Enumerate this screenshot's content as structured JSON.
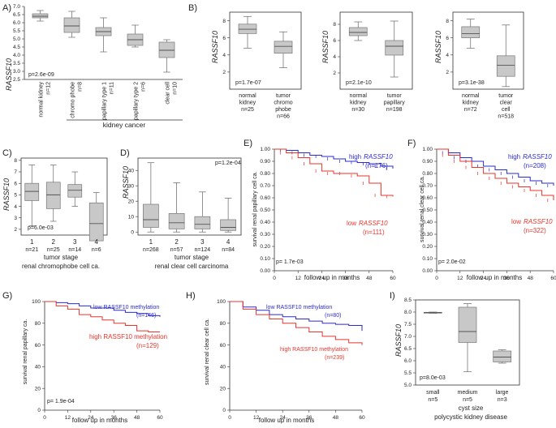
{
  "colors": {
    "box": "#c8c8c8",
    "blue": "#2b2bcf",
    "red": "#e8352b",
    "axis": "#333333"
  },
  "panels": {
    "A": {
      "label": "A)",
      "ylabel": "RASSF10",
      "pvalue": "p=2.6e-09",
      "group": "kidney cancer",
      "ticks": [
        "7.0",
        "6.5",
        "6.0",
        "5.5",
        "5.0",
        "4.5",
        "4.0",
        "3.5",
        "3.0",
        "2.5"
      ],
      "cats": [
        {
          "name": "normal kidney",
          "n": "n=12"
        },
        {
          "name": "chromo phobe",
          "n": "n=8"
        },
        {
          "name": "papillary type 1",
          "n": "n=11"
        },
        {
          "name": "papillary type 2",
          "n": "n=6"
        },
        {
          "name": "clear cell",
          "n": "n=10"
        }
      ]
    },
    "B": {
      "label": "B)",
      "ylabel": "RASSF10",
      "sub": [
        {
          "pvalue": "p=1.7e-07",
          "ticks": [
            "8",
            "6",
            "4",
            "2"
          ],
          "cats": [
            {
              "name": "normal kidney",
              "n": "n=25"
            },
            {
              "name": "tumor chromo phobe",
              "n": "n=66"
            }
          ]
        },
        {
          "pvalue": "p=2.1e-10",
          "ticks": [
            "8",
            "6",
            "4",
            "2"
          ],
          "cats": [
            {
              "name": "normal kidney",
              "n": "n=30"
            },
            {
              "name": "tumor papillary",
              "n": "n=198"
            }
          ]
        },
        {
          "pvalue": "p=3.1e-38",
          "ticks": [
            "8",
            "6",
            "4",
            "2"
          ],
          "cats": [
            {
              "name": "normal kidney",
              "n": "n=72"
            },
            {
              "name": "tumor clear cell",
              "n": "n=518"
            }
          ]
        }
      ]
    },
    "C": {
      "label": "C)",
      "ylabel": "RASSF10",
      "pvalue": "p=6.0e-03",
      "ticks": [
        "8",
        "7",
        "6",
        "5",
        "4",
        "3",
        "2"
      ],
      "cats": [
        "1",
        "2",
        "3",
        "4"
      ],
      "ns": [
        "n=21",
        "n=25",
        "n=14",
        "n=6"
      ],
      "xlabel1": "tumor stage",
      "xlabel2": "renal chromophobe cell ca."
    },
    "D": {
      "label": "D)",
      "ylabel": "RASSF10",
      "pvalue": "p=1.2e-04",
      "ticks": [
        "40",
        "30",
        "20",
        "10",
        "0"
      ],
      "cats": [
        "1",
        "2",
        "3",
        "4"
      ],
      "ns": [
        "n=268",
        "n=57",
        "n=124",
        "n=84"
      ],
      "xlabel1": "tumor stage",
      "xlabel2": "renal clear cell carcinoma"
    },
    "E": {
      "label": "E)",
      "ylabel": "survival renal papillary cell ca.",
      "xlabel": "follow up in months",
      "pvalue": "p= 1.7e-03",
      "yticks": [
        "1.00",
        "0.90",
        "0.80",
        "0.70",
        "0.60",
        "0.50",
        "0.40",
        "0.30",
        "0.20",
        "0.10",
        "0.00"
      ],
      "xticks": [
        "0",
        "12",
        "24",
        "36",
        "48",
        "60"
      ],
      "high": "high",
      "low": "low",
      "gene": "RASSF10",
      "high_n": "(n=176)",
      "low_n": "(n=111)"
    },
    "F": {
      "label": "F)",
      "ylabel": "survival renal clear cell ca.",
      "xlabel": "follow up in months",
      "pvalue": "p= 2.0e-02",
      "yticks": [
        "1.00",
        "0.90",
        "0.80",
        "0.70",
        "0.60",
        "0.50",
        "0.40",
        "0.30",
        "0.20",
        "0.10",
        "0.00"
      ],
      "xticks": [
        "0",
        "12",
        "24",
        "36",
        "48",
        "60"
      ],
      "high": "high",
      "low": "low",
      "gene": "RASSF10",
      "high_n": "(n=208)",
      "low_n": "(n=322)"
    },
    "G": {
      "label": "G)",
      "ylabel": "survival renal papillary ca.",
      "xlabel": "follow up in months",
      "pvalue": "p= 1.9e-04",
      "yticks": [
        "100",
        "80",
        "60",
        "40",
        "20",
        "0"
      ],
      "xticks": [
        "0",
        "12",
        "24",
        "36",
        "48",
        "60"
      ],
      "top": "low RASSF10 methylation",
      "top_n": "(n=146)",
      "bottom": "high RASSF10 methylation",
      "bottom_n": "(n=129)"
    },
    "H": {
      "label": "H)",
      "ylabel": "survival renal clear cell ca.",
      "xlabel": "follow up in months",
      "yticks": [
        "100",
        "80",
        "60",
        "40",
        "20",
        "0"
      ],
      "xticks": [
        "0",
        "12",
        "24",
        "36",
        "48",
        "60"
      ],
      "top": "low RASSF10 methylation",
      "top_n": "(n=80)",
      "bottom": "high RASSF10 methylation",
      "bottom_n": "(n=239)"
    },
    "I": {
      "label": "I)",
      "ylabel": "RASSF10",
      "pvalue": "p=8.0e-03",
      "ticks": [
        "8.5",
        "8.0",
        "7.5",
        "7.0",
        "6.5",
        "6.0",
        "5.5",
        "5.0"
      ],
      "cats": [
        {
          "name": "small",
          "n": "n=5"
        },
        {
          "name": "medium",
          "n": "n=5"
        },
        {
          "name": "large",
          "n": "n=3"
        }
      ],
      "xlabel1": "cyst size",
      "xlabel2": "polycystic kidney disease"
    }
  },
  "chart_data": [
    {
      "panel": "A",
      "type": "box",
      "categories": [
        "normal kidney",
        "chromo phobe",
        "papillary type 1",
        "papillary type 2",
        "clear cell"
      ],
      "boxes": [
        [
          6.1,
          6.3,
          6.4,
          6.55,
          6.75
        ],
        [
          5.1,
          5.4,
          5.8,
          6.3,
          6.7
        ],
        [
          4.2,
          5.2,
          5.45,
          5.7,
          6.3
        ],
        [
          4.5,
          4.6,
          4.95,
          5.3,
          5.85
        ],
        [
          2.95,
          3.85,
          4.3,
          4.8,
          4.95
        ]
      ],
      "ylim": [
        2.5,
        7.0
      ]
    },
    {
      "panel": "B1",
      "type": "box",
      "categories": [
        "normal kidney",
        "tumor chromo phobe"
      ],
      "boxes": [
        [
          4.8,
          6.5,
          7.0,
          7.6,
          8.5
        ],
        [
          2.5,
          4.2,
          5.0,
          5.6,
          6.7
        ]
      ],
      "ylim": [
        0,
        9
      ]
    },
    {
      "panel": "B2",
      "type": "box",
      "categories": [
        "normal kidney",
        "tumor papillary"
      ],
      "boxes": [
        [
          6.0,
          6.6,
          7.0,
          7.6,
          8.3
        ],
        [
          1.5,
          4.2,
          5.3,
          6.0,
          8.4
        ]
      ],
      "ylim": [
        0,
        9.5
      ]
    },
    {
      "panel": "B3",
      "type": "box",
      "categories": [
        "normal kidney",
        "tumor clear cell"
      ],
      "boxes": [
        [
          4.8,
          6.0,
          6.5,
          7.3,
          8.2
        ],
        [
          0.3,
          1.5,
          2.8,
          3.9,
          7.5
        ]
      ],
      "ylim": [
        0,
        9
      ]
    },
    {
      "panel": "C",
      "type": "box",
      "categories": [
        "1",
        "2",
        "3",
        "4"
      ],
      "boxes": [
        [
          2.3,
          4.5,
          5.3,
          6.0,
          7.6
        ],
        [
          2.7,
          3.8,
          5.0,
          6.1,
          7.6
        ],
        [
          4.0,
          4.8,
          5.4,
          5.9,
          7.0
        ],
        [
          1.0,
          1.0,
          2.5,
          4.3,
          5.2
        ]
      ],
      "ylim": [
        1.5,
        8.2
      ]
    },
    {
      "panel": "D",
      "type": "box",
      "categories": [
        "1",
        "2",
        "3",
        "4"
      ],
      "boxes": [
        [
          0,
          3,
          8,
          18,
          45
        ],
        [
          0,
          2,
          6,
          12,
          32
        ],
        [
          0,
          2,
          5,
          10,
          26
        ],
        [
          0,
          1,
          3,
          8,
          22
        ]
      ],
      "ylim": [
        -2,
        48
      ]
    },
    {
      "panel": "E",
      "type": "line",
      "xlabel": "follow up in months",
      "ylabel": "survival renal papillary cell ca.",
      "xlim": [
        0,
        60
      ],
      "ylim": [
        0,
        1.0
      ],
      "series": [
        {
          "name": "high RASSF10",
          "x": [
            0,
            6,
            12,
            18,
            24,
            30,
            36,
            42,
            48,
            54,
            60
          ],
          "y": [
            1.0,
            0.99,
            0.97,
            0.95,
            0.94,
            0.92,
            0.9,
            0.89,
            0.88,
            0.86,
            0.84
          ]
        },
        {
          "name": "low RASSF10",
          "x": [
            0,
            6,
            12,
            18,
            24,
            30,
            36,
            42,
            48,
            54,
            60
          ],
          "y": [
            1.0,
            0.97,
            0.93,
            0.88,
            0.82,
            0.8,
            0.8,
            0.78,
            0.72,
            0.62,
            0.61
          ]
        }
      ]
    },
    {
      "panel": "F",
      "type": "line",
      "xlabel": "follow up in months",
      "ylabel": "survival renal clear cell ca.",
      "xlim": [
        0,
        60
      ],
      "ylim": [
        0,
        1.0
      ],
      "series": [
        {
          "name": "high RASSF10",
          "x": [
            0,
            6,
            12,
            18,
            24,
            30,
            36,
            42,
            48,
            54,
            60
          ],
          "y": [
            1.0,
            0.97,
            0.93,
            0.9,
            0.86,
            0.83,
            0.8,
            0.77,
            0.74,
            0.72,
            0.7
          ]
        },
        {
          "name": "low RASSF10",
          "x": [
            0,
            6,
            12,
            18,
            24,
            30,
            36,
            42,
            48,
            54,
            60
          ],
          "y": [
            1.0,
            0.95,
            0.9,
            0.85,
            0.8,
            0.76,
            0.72,
            0.69,
            0.66,
            0.62,
            0.58
          ]
        }
      ]
    },
    {
      "panel": "G",
      "type": "line",
      "xlabel": "follow up in months",
      "ylabel": "survival renal papillary ca.",
      "xlim": [
        0,
        60
      ],
      "ylim": [
        0,
        100
      ],
      "series": [
        {
          "name": "low RASSF10 methylation",
          "x": [
            0,
            6,
            12,
            18,
            24,
            30,
            36,
            42,
            48,
            54,
            60
          ],
          "y": [
            100,
            99,
            98,
            96,
            94,
            94,
            92,
            90,
            89,
            87,
            86
          ]
        },
        {
          "name": "high RASSF10 methylation",
          "x": [
            0,
            6,
            12,
            18,
            24,
            30,
            36,
            42,
            48,
            54,
            60
          ],
          "y": [
            100,
            96,
            93,
            88,
            86,
            83,
            80,
            78,
            73,
            72,
            72
          ]
        }
      ]
    },
    {
      "panel": "H",
      "type": "line",
      "xlabel": "follow up in months",
      "ylabel": "survival renal clear cell ca.",
      "xlim": [
        0,
        60
      ],
      "ylim": [
        0,
        100
      ],
      "series": [
        {
          "name": "low RASSF10 methylation",
          "x": [
            0,
            6,
            12,
            18,
            24,
            30,
            36,
            42,
            48,
            54,
            60
          ],
          "y": [
            100,
            95,
            92,
            88,
            86,
            84,
            82,
            80,
            79,
            78,
            73
          ]
        },
        {
          "name": "high RASSF10 methylation",
          "x": [
            0,
            6,
            12,
            18,
            24,
            30,
            36,
            42,
            48,
            54,
            60
          ],
          "y": [
            100,
            93,
            88,
            84,
            80,
            76,
            72,
            68,
            65,
            62,
            60
          ]
        }
      ]
    },
    {
      "panel": "I",
      "type": "box",
      "categories": [
        "small",
        "medium",
        "large"
      ],
      "boxes": [
        [
          7.95,
          7.97,
          7.98,
          7.99,
          8.0
        ],
        [
          5.55,
          6.75,
          7.2,
          8.2,
          8.35
        ],
        [
          5.9,
          5.95,
          6.15,
          6.4,
          6.45
        ]
      ],
      "ylim": [
        5.0,
        8.5
      ]
    }
  ]
}
